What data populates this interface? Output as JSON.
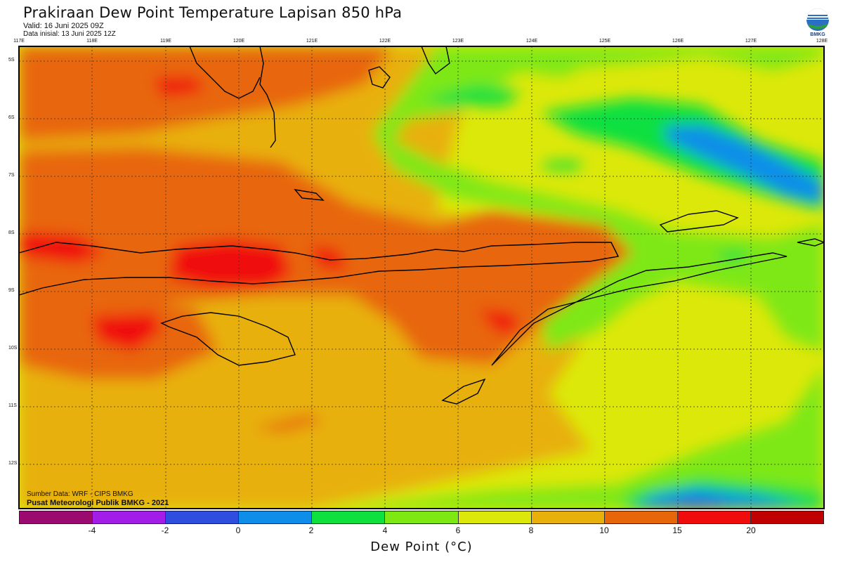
{
  "header": {
    "title": "Prakiraan Dew Point Temperature Lapisan 850 hPa",
    "valid": "Valid: 16 Juni 2025 09Z",
    "init": "Data inisial: 13 Juni 2025 12Z"
  },
  "logo": {
    "text": "BMKG",
    "icon": "bmkg-logo-icon"
  },
  "map": {
    "lon_labels": [
      "117E",
      "118E",
      "119E",
      "120E",
      "121E",
      "122E",
      "123E",
      "124E",
      "125E",
      "126E",
      "127E",
      "128E"
    ],
    "lat_labels": [
      "5S",
      "6S",
      "7S",
      "8S",
      "9S",
      "10S",
      "11S",
      "12S"
    ],
    "source": "Sumber Data: WRF - CIPS BMKG",
    "publisher": "Pusat Meteorologi Publik BMKG - 2021"
  },
  "colorbar": {
    "label": "Dew Point (°C)",
    "colors": [
      "#9b0a6e",
      "#a21ee8",
      "#2f4ee0",
      "#0e8ee8",
      "#0ee040",
      "#7ee812",
      "#dce80a",
      "#e8b00a",
      "#e8660a",
      "#f00c0c",
      "#c00000"
    ],
    "ticks": [
      "-4",
      "-2",
      "0",
      "2",
      "4",
      "6",
      "8",
      "10",
      "15",
      "20"
    ]
  }
}
